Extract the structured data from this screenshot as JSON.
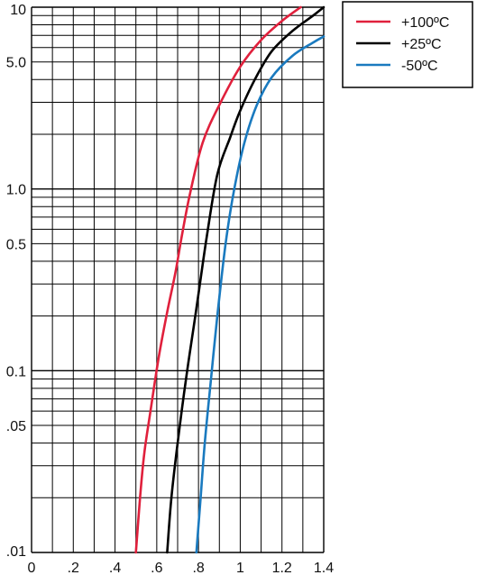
{
  "chart_data": {
    "type": "line",
    "title": "",
    "xlabel": "",
    "ylabel": "",
    "xlim": [
      0,
      1.4
    ],
    "ylim": [
      0.01,
      10
    ],
    "yscale": "log",
    "grid": true,
    "legend_position": "top-right",
    "x_tick_labels": [
      "0",
      ".2",
      ".4",
      ".6",
      ".8",
      "1",
      "1.2",
      "1.4"
    ],
    "y_tick_labels": [
      {
        "value": 10,
        "label": "10"
      },
      {
        "value": 5,
        "label": "5.0"
      },
      {
        "value": 1,
        "label": "1.0"
      },
      {
        "value": 0.5,
        "label": "0.5"
      },
      {
        "value": 0.1,
        "label": "0.1"
      },
      {
        "value": 0.05,
        "label": ".05"
      },
      {
        "value": 0.01,
        "label": ".01"
      }
    ],
    "series": [
      {
        "name": "+100ºC",
        "color": "#e0203c",
        "points": [
          [
            0.5,
            0.01
          ],
          [
            0.52,
            0.02
          ],
          [
            0.54,
            0.035
          ],
          [
            0.57,
            0.06
          ],
          [
            0.61,
            0.12
          ],
          [
            0.65,
            0.21
          ],
          [
            0.69,
            0.35
          ],
          [
            0.72,
            0.55
          ],
          [
            0.76,
            0.95
          ],
          [
            0.82,
            1.8
          ],
          [
            0.9,
            2.9
          ],
          [
            1.0,
            4.7
          ],
          [
            1.1,
            6.6
          ],
          [
            1.2,
            8.4
          ],
          [
            1.29,
            10.0
          ]
        ]
      },
      {
        "name": "+25ºC",
        "color": "#000000",
        "points": [
          [
            0.65,
            0.01
          ],
          [
            0.67,
            0.02
          ],
          [
            0.7,
            0.04
          ],
          [
            0.74,
            0.09
          ],
          [
            0.79,
            0.22
          ],
          [
            0.84,
            0.55
          ],
          [
            0.89,
            1.2
          ],
          [
            0.95,
            1.9
          ],
          [
            1.0,
            2.7
          ],
          [
            1.07,
            4.0
          ],
          [
            1.15,
            5.7
          ],
          [
            1.25,
            7.4
          ],
          [
            1.35,
            9.0
          ],
          [
            1.4,
            10.0
          ]
        ]
      },
      {
        "name": "-50ºC",
        "color": "#1a7abf",
        "points": [
          [
            0.79,
            0.01
          ],
          [
            0.81,
            0.02
          ],
          [
            0.83,
            0.04
          ],
          [
            0.86,
            0.09
          ],
          [
            0.89,
            0.2
          ],
          [
            0.93,
            0.5
          ],
          [
            0.97,
            0.98
          ],
          [
            1.02,
            1.8
          ],
          [
            1.08,
            2.9
          ],
          [
            1.15,
            4.1
          ],
          [
            1.25,
            5.4
          ],
          [
            1.35,
            6.4
          ],
          [
            1.4,
            6.9
          ]
        ]
      }
    ]
  }
}
